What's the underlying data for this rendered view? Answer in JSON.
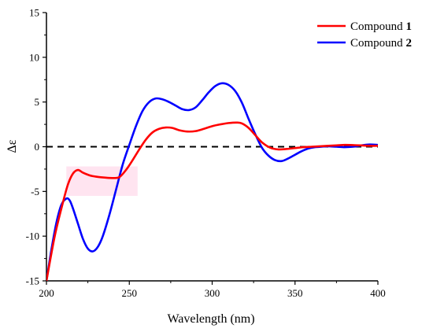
{
  "chart_data": {
    "type": "line",
    "xlabel": "Wavelength (nm)",
    "ylabel": "Δε",
    "xlim": [
      200,
      400
    ],
    "ylim": [
      -15,
      15
    ],
    "xticks": [
      200,
      250,
      300,
      350,
      400
    ],
    "yticks": [
      -15,
      -10,
      -5,
      0,
      5,
      10,
      15
    ],
    "grid": false,
    "legend_position": "top-right",
    "zero_line": {
      "y": 0,
      "style": "dashed",
      "color": "#000000"
    },
    "highlight_region": {
      "x": [
        212,
        255
      ],
      "y": [
        -5.5,
        -2.2
      ],
      "color": "#ffe4f0"
    },
    "series": [
      {
        "label_prefix": "Compound ",
        "label_number": "1",
        "color": "#ff0000",
        "x": [
          200,
          205,
          210,
          213,
          216,
          219,
          222,
          226,
          230,
          235,
          240,
          244,
          248,
          252,
          256,
          260,
          264,
          268,
          272,
          276,
          280,
          285,
          290,
          295,
          300,
          305,
          310,
          315,
          318,
          322,
          326,
          330,
          335,
          340,
          345,
          350,
          355,
          360,
          365,
          370,
          375,
          380,
          385,
          390,
          395,
          400
        ],
        "y": [
          -15,
          -10,
          -6.2,
          -4.2,
          -3.0,
          -2.6,
          -2.9,
          -3.2,
          -3.35,
          -3.45,
          -3.5,
          -3.4,
          -2.6,
          -1.5,
          -0.3,
          0.8,
          1.6,
          2.0,
          2.15,
          2.1,
          1.85,
          1.7,
          1.75,
          2.0,
          2.3,
          2.5,
          2.65,
          2.7,
          2.6,
          2.1,
          1.3,
          0.5,
          -0.1,
          -0.3,
          -0.25,
          -0.15,
          -0.05,
          0.0,
          0.05,
          0.1,
          0.15,
          0.2,
          0.18,
          0.15,
          0.1,
          0.1
        ]
      },
      {
        "label_prefix": "Compound ",
        "label_number": "2",
        "color": "#0000ff",
        "x": [
          200,
          203,
          206,
          209,
          212,
          214,
          216,
          219,
          222,
          225,
          228,
          231,
          234,
          238,
          242,
          246,
          250,
          254,
          258,
          262,
          266,
          270,
          274,
          278,
          282,
          286,
          290,
          294,
          298,
          302,
          306,
          310,
          314,
          318,
          322,
          326,
          330,
          334,
          338,
          342,
          346,
          350,
          354,
          358,
          362,
          366,
          370,
          375,
          380,
          385,
          390,
          395,
          400
        ],
        "y": [
          -15,
          -11.5,
          -8.5,
          -6.5,
          -5.8,
          -6.0,
          -6.9,
          -8.6,
          -10.3,
          -11.4,
          -11.7,
          -11.2,
          -10.0,
          -7.6,
          -4.8,
          -2.0,
          0.2,
          2.3,
          4.0,
          5.0,
          5.4,
          5.3,
          5.0,
          4.6,
          4.2,
          4.1,
          4.4,
          5.2,
          6.1,
          6.8,
          7.1,
          6.9,
          6.2,
          4.9,
          3.1,
          1.4,
          -0.1,
          -1.0,
          -1.5,
          -1.6,
          -1.3,
          -0.9,
          -0.5,
          -0.2,
          -0.05,
          0.0,
          0.05,
          0.0,
          -0.05,
          0.0,
          0.15,
          0.25,
          0.2
        ]
      }
    ]
  }
}
